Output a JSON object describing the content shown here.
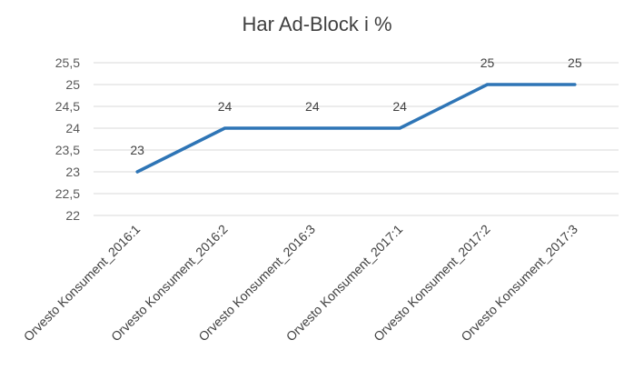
{
  "chart_data": {
    "type": "line",
    "title": "Har Ad-Block i %",
    "xlabel": "",
    "ylabel": "",
    "categories": [
      "Orvesto Konsument_2016:1",
      "Orvesto Konsument_2016:2",
      "Orvesto Konsument_2016:3",
      "Orvesto Konsument_2017:1",
      "Orvesto Konsument_2017:2",
      "Orvesto Konsument_2017:3"
    ],
    "series": [
      {
        "values": [
          23,
          24,
          24,
          24,
          25,
          25
        ],
        "color": "#2e75b6"
      }
    ],
    "data_labels": [
      "23",
      "24",
      "24",
      "24",
      "25",
      "25"
    ],
    "ylim": [
      22,
      25.5
    ],
    "y_ticks": [
      {
        "value": 22,
        "label": "22"
      },
      {
        "value": 22.5,
        "label": "22,5"
      },
      {
        "value": 23,
        "label": "23"
      },
      {
        "value": 23.5,
        "label": "23,5"
      },
      {
        "value": 24,
        "label": "24"
      },
      {
        "value": 24.5,
        "label": "24,5"
      },
      {
        "value": 25,
        "label": "25"
      },
      {
        "value": 25.5,
        "label": "25,5"
      }
    ],
    "grid": true,
    "legend": "none"
  }
}
